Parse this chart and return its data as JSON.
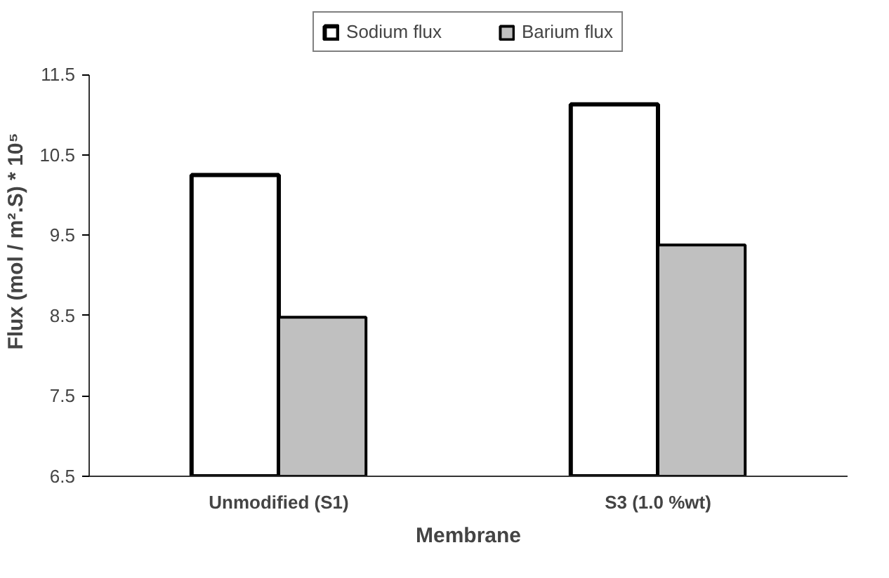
{
  "chart_data": {
    "type": "bar",
    "xlabel": "Membrane",
    "ylabel": "Flux (mol / m².S) * 10⁵",
    "categories": [
      "Unmodified (S1)",
      "S3 (1.0 %wt)"
    ],
    "series": [
      {
        "name": "Sodium flux",
        "color": "#ffffff",
        "values": [
          10.25,
          11.13
        ]
      },
      {
        "name": "Barium flux",
        "color": "#c0c0c0",
        "values": [
          8.48,
          9.38
        ]
      }
    ],
    "ylim": [
      6.5,
      11.5
    ],
    "yticks": [
      6.5,
      7.5,
      8.5,
      9.5,
      10.5,
      11.5
    ],
    "grid": false,
    "legend": "top"
  }
}
